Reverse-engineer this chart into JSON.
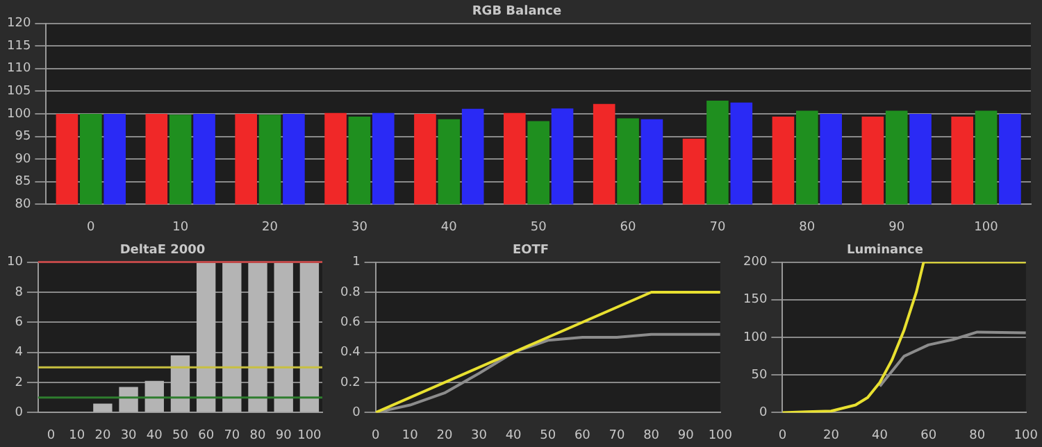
{
  "chart_data": [
    {
      "type": "bar",
      "title": "RGB Balance",
      "categories": [
        "0",
        "10",
        "20",
        "30",
        "40",
        "50",
        "60",
        "70",
        "80",
        "90",
        "100"
      ],
      "series": [
        {
          "color": "#f02828",
          "values": [
            100,
            100,
            100,
            100.2,
            100,
            100.2,
            102.2,
            94.5,
            99.4,
            99.4,
            99.4
          ]
        },
        {
          "color": "#1f8f1f",
          "values": [
            100,
            99.8,
            99.8,
            99.4,
            98.8,
            98.4,
            99,
            102.9,
            100.7,
            100.7,
            100.7
          ]
        },
        {
          "color": "#2a2af5",
          "values": [
            100,
            100,
            100,
            100.2,
            101.1,
            101.2,
            98.8,
            102.5,
            100,
            100,
            100
          ]
        }
      ],
      "ylim": [
        80,
        120
      ],
      "yticks": [
        80,
        85,
        90,
        95,
        100,
        105,
        110,
        115,
        120
      ],
      "grid": "y",
      "legend": false
    },
    {
      "type": "bar",
      "title": "DeltaE 2000",
      "categories": [
        "0",
        "10",
        "20",
        "30",
        "40",
        "50",
        "60",
        "70",
        "80",
        "90",
        "100"
      ],
      "values": [
        0,
        0,
        0.6,
        1.7,
        2.1,
        3.8,
        10,
        10,
        10,
        10,
        10
      ],
      "color": "#b4b4b4",
      "ylim": [
        0,
        10
      ],
      "yticks": [
        0,
        2,
        4,
        6,
        8,
        10
      ],
      "grid": "y",
      "legend": false,
      "ref_lines": [
        {
          "axis": "y",
          "value": 3,
          "color": "#c8c040"
        },
        {
          "axis": "y",
          "value": 1,
          "color": "#2e7d2e"
        },
        {
          "axis": "y",
          "value": 10,
          "color": "#c04848"
        }
      ]
    },
    {
      "type": "line",
      "title": "EOTF",
      "series": [
        {
          "color": "#e8e030",
          "x": [
            0,
            80,
            100
          ],
          "values": [
            0,
            0.8,
            0.8
          ]
        },
        {
          "color": "#8c8c8c",
          "x": [
            0,
            10,
            20,
            30,
            40,
            50,
            60,
            70,
            80,
            90,
            100
          ],
          "values": [
            0,
            0.05,
            0.13,
            0.26,
            0.4,
            0.48,
            0.5,
            0.5,
            0.52,
            0.52,
            0.52
          ]
        }
      ],
      "xlim": [
        0,
        100
      ],
      "xticks": [
        0,
        10,
        20,
        30,
        40,
        50,
        60,
        70,
        80,
        90,
        100
      ],
      "ylim": [
        0,
        1
      ],
      "yticks": [
        0,
        0.2,
        0.4,
        0.6,
        0.8,
        1
      ],
      "grid": "y",
      "legend": false,
      "marker": "none"
    },
    {
      "type": "line",
      "title": "Luminance",
      "series": [
        {
          "color": "#e8e030",
          "x": [
            0,
            10,
            20,
            30,
            35,
            40,
            45,
            50,
            55,
            58,
            100
          ],
          "values": [
            0,
            1,
            2,
            10,
            20,
            40,
            70,
            110,
            160,
            200,
            200
          ]
        },
        {
          "color": "#8c8c8c",
          "x": [
            40,
            45,
            50,
            60,
            70,
            80,
            100
          ],
          "values": [
            35,
            55,
            75,
            90,
            97,
            107,
            106
          ]
        }
      ],
      "xlim": [
        0,
        100
      ],
      "xticks": [
        0,
        20,
        40,
        60,
        80,
        100
      ],
      "ylim": [
        0,
        200
      ],
      "yticks": [
        0,
        50,
        100,
        150,
        200
      ],
      "grid": "y",
      "legend": false,
      "marker": "none"
    }
  ]
}
